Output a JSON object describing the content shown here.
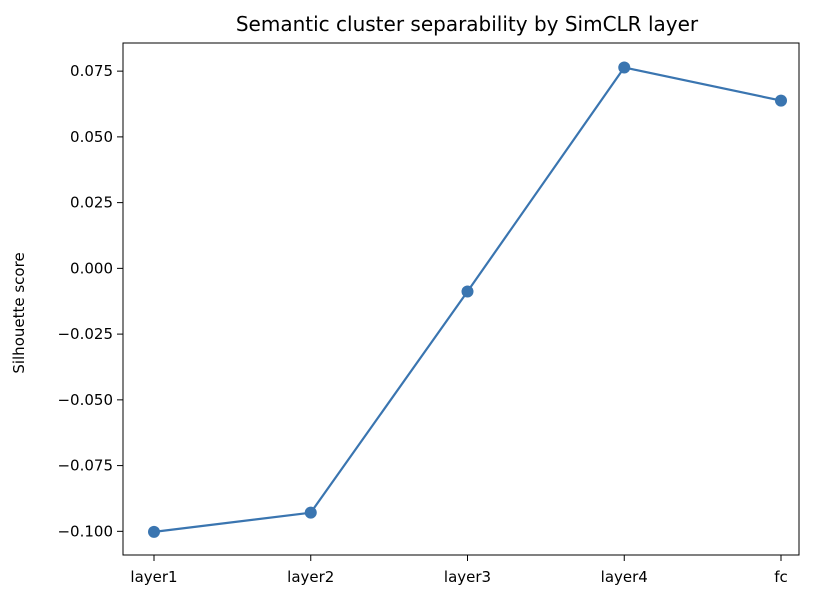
{
  "chart_data": {
    "type": "line",
    "title": "Semantic cluster separability by SimCLR layer",
    "xlabel": "",
    "ylabel": "Silhouette score",
    "categories": [
      "layer1",
      "layer2",
      "layer3",
      "layer4",
      "fc"
    ],
    "series": [
      {
        "values": [
          -0.1002,
          -0.0929,
          -0.0088,
          0.0764,
          0.0638
        ],
        "color": "#3a75b0",
        "marker": "circle"
      }
    ],
    "ylim": [
      -0.109,
      0.0857
    ],
    "yticks": [
      -0.1,
      -0.075,
      -0.05,
      -0.025,
      0.0,
      0.025,
      0.05,
      0.075
    ],
    "ytick_labels": [
      "−0.100",
      "−0.075",
      "−0.050",
      "−0.025",
      "0.000",
      "0.025",
      "0.050",
      "0.075"
    ],
    "grid": false,
    "legend": "none"
  }
}
